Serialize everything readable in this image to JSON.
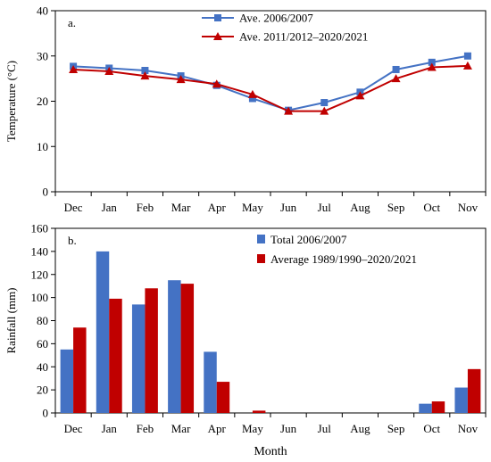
{
  "chart_data": [
    {
      "type": "line",
      "panel_label": "a.",
      "ylabel": "Temperature (°C)",
      "ylim": [
        0,
        40
      ],
      "yticks": [
        0,
        10,
        20,
        30,
        40
      ],
      "categories": [
        "Dec",
        "Jan",
        "Feb",
        "Mar",
        "Apr",
        "May",
        "Jun",
        "Jul",
        "Aug",
        "Sep",
        "Oct",
        "Nov"
      ],
      "grid": false,
      "legend": "top-center",
      "series": [
        {
          "name": "Ave. 2006/2007",
          "color": "#4472C4",
          "marker": "square",
          "values": [
            27.7,
            27.3,
            26.8,
            25.6,
            23.5,
            20.6,
            18.0,
            19.7,
            22.0,
            27.0,
            28.6,
            30.0
          ]
        },
        {
          "name": "Ave. 2011/2012–2020/2021",
          "color": "#C00000",
          "marker": "triangle",
          "values": [
            27.0,
            26.6,
            25.6,
            24.8,
            23.8,
            21.5,
            17.8,
            17.8,
            21.2,
            25.0,
            27.5,
            27.8
          ]
        }
      ]
    },
    {
      "type": "bar",
      "panel_label": "b.",
      "ylabel": "Rainfall (mm)",
      "xlabel": "Month",
      "ylim": [
        0,
        160
      ],
      "yticks": [
        0,
        20,
        40,
        60,
        80,
        100,
        120,
        140,
        160
      ],
      "categories": [
        "Dec",
        "Jan",
        "Feb",
        "Mar",
        "Apr",
        "May",
        "Jun",
        "Jul",
        "Aug",
        "Sep",
        "Oct",
        "Nov"
      ],
      "grid": false,
      "legend": "top-right",
      "series": [
        {
          "name": "Total 2006/2007",
          "color": "#4472C4",
          "values": [
            55,
            140,
            94,
            115,
            53,
            0,
            0,
            0,
            0,
            0,
            8,
            22
          ]
        },
        {
          "name": "Average 1989/1990–2020/2021",
          "color": "#C00000",
          "values": [
            74,
            99,
            108,
            112,
            27,
            2,
            0,
            0,
            0,
            0,
            10,
            38
          ]
        }
      ]
    }
  ]
}
